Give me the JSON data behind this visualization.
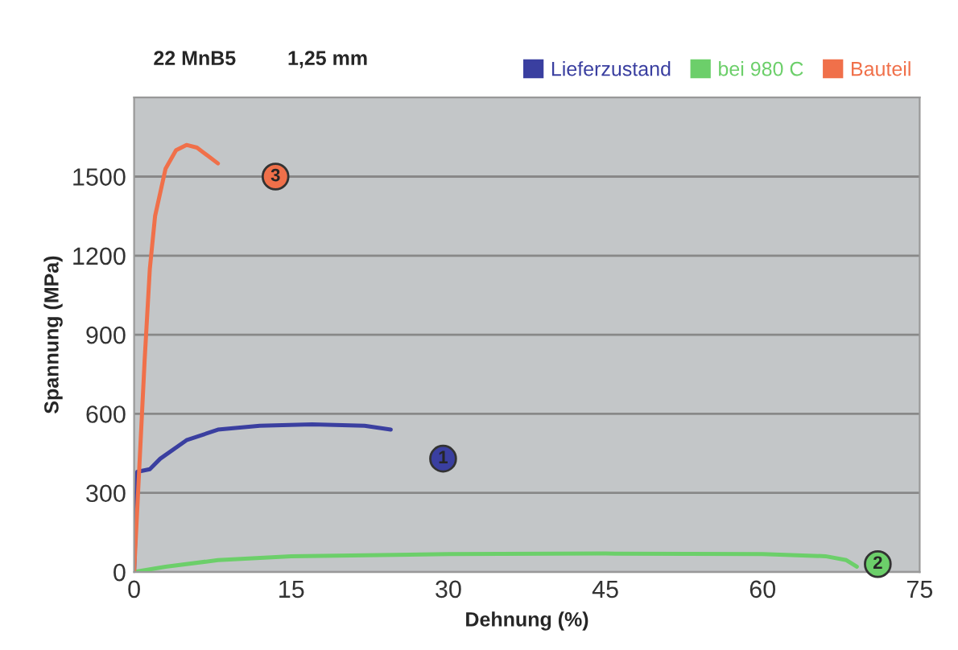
{
  "chart_data": {
    "type": "line",
    "title": "22 MnB5",
    "subtitle": "1,25 mm",
    "xlabel": "Dehnung (%)",
    "ylabel": "Spannung (MPa)",
    "xlim": [
      0,
      75
    ],
    "xticks": [
      0,
      15,
      30,
      45,
      60,
      75
    ],
    "ylim": [
      0,
      1800
    ],
    "yticks": [
      0,
      300,
      600,
      900,
      1200,
      1500
    ],
    "grid": "y",
    "legend": "top right",
    "marker": "none",
    "line_style": "solid",
    "series": [
      {
        "name": "Lieferzustand",
        "color": "#3a3fa0",
        "x": [
          0,
          0.3,
          1.5,
          2.5,
          5,
          8,
          12,
          17,
          22,
          24.5
        ],
        "values": [
          0,
          380,
          390,
          430,
          500,
          540,
          555,
          560,
          555,
          540
        ]
      },
      {
        "name": "bei 980 C",
        "color": "#6ccf6a",
        "x": [
          0,
          3,
          8,
          15,
          30,
          45,
          60,
          66,
          68,
          69
        ],
        "values": [
          0,
          20,
          45,
          60,
          68,
          70,
          68,
          60,
          45,
          20
        ]
      },
      {
        "name": "Bauteil",
        "color": "#f0704a",
        "x": [
          0,
          0.5,
          1,
          1.5,
          2,
          3,
          4,
          5,
          6,
          7,
          8
        ],
        "values": [
          0,
          400,
          800,
          1150,
          1350,
          1530,
          1600,
          1620,
          1610,
          1580,
          1550
        ]
      }
    ],
    "annotations": [
      {
        "text": "1",
        "x": 29.5,
        "y": 430
      },
      {
        "text": "2",
        "x": 71,
        "y": 30
      },
      {
        "text": "3",
        "x": 13.5,
        "y": 1500
      }
    ]
  }
}
